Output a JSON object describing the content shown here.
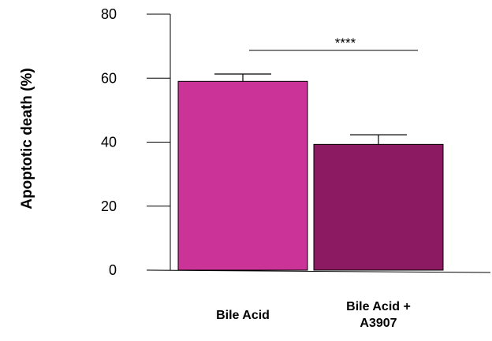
{
  "chart_data": {
    "type": "bar",
    "title": "",
    "xlabel": "",
    "ylabel": "Apoptotic death (%)",
    "ylim": [
      0,
      80
    ],
    "yticks": [
      "0",
      "20",
      "40",
      "60",
      "80"
    ],
    "categories": [
      {
        "lines": [
          "Bile Acid"
        ]
      },
      {
        "lines": [
          "Bile Acid +",
          "A3907"
        ]
      }
    ],
    "values": [
      59,
      39.3
    ],
    "errors": [
      2.3,
      3.0
    ],
    "colors": [
      "#cc3399",
      "#8b1a63"
    ],
    "significance": {
      "label": "****",
      "between": [
        0,
        1
      ]
    },
    "grid": false,
    "legend": "none"
  }
}
